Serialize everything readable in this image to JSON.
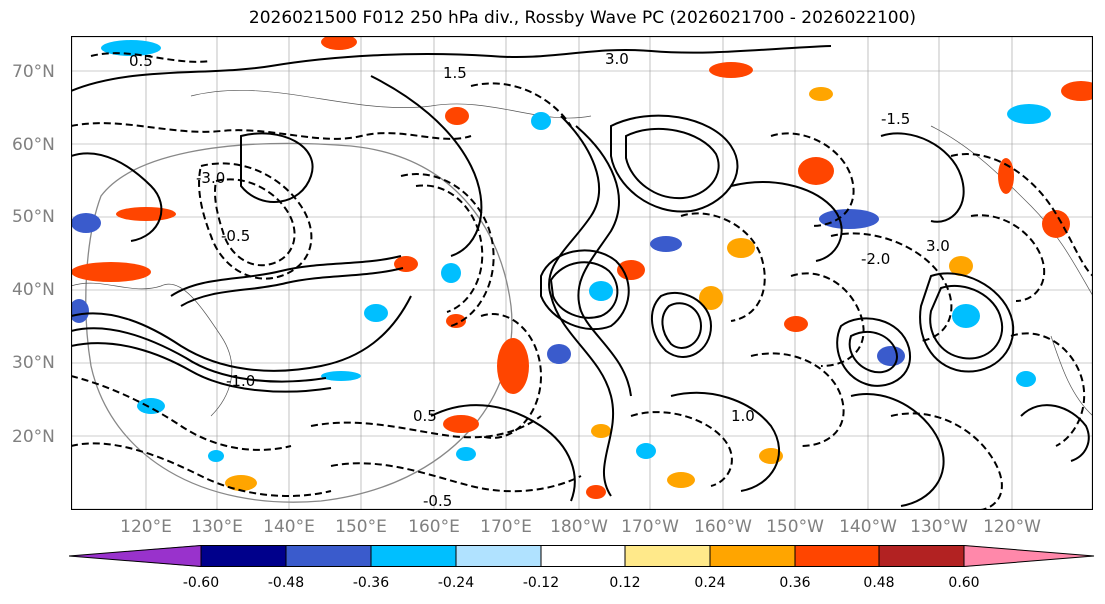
{
  "title": "2026021500 F012 250 hPa div., Rossby Wave PC (2026021700 - 2026022100)",
  "lat_labels": [
    "70°N",
    "60°N",
    "50°N",
    "40°N",
    "30°N",
    "20°N"
  ],
  "lon_labels": [
    "120°E",
    "130°E",
    "140°E",
    "150°E",
    "160°E",
    "170°E",
    "180°W",
    "170°W",
    "160°W",
    "150°W",
    "140°W",
    "130°W",
    "120°W"
  ],
  "contour_labels": [
    "0.5",
    "1.5",
    "3.0",
    "-0.5",
    "-1.5",
    "-3.0",
    "1.0",
    "-1.0",
    "-2.0",
    "0.5",
    "-0.5",
    "3.0"
  ],
  "colorbar": {
    "colors": [
      "#9932CC",
      "#00008B",
      "#3A5BCC",
      "#00BFFF",
      "#B0E2FF",
      "#FFFFFF",
      "#FFE98A",
      "#FFA500",
      "#FF4500",
      "#B22222",
      "#FF88AA"
    ],
    "tick_labels": [
      "-0.60",
      "-0.48",
      "-0.36",
      "-0.24",
      "-0.12",
      "0.12",
      "0.24",
      "0.36",
      "0.48",
      "0.60"
    ]
  }
}
